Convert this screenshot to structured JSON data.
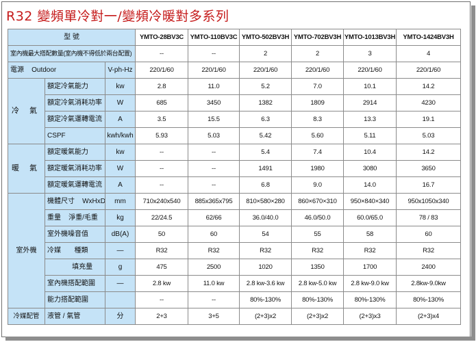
{
  "title": "R32  變頻單冷對一/變頻冷暖對多系列",
  "header": {
    "label": "型         號",
    "models": [
      "YMTO-28BV3C",
      "YMTO-110BV3C",
      "YMTO-502BV3H",
      "YMTO-702BV3H",
      "YMTO-1013BV3H",
      "YMTO-1424BV3H"
    ]
  },
  "row_max_units": {
    "label": "室內機最大搭配數量(室內機不得低於兩台配置)",
    "values": [
      "--",
      "--",
      "2",
      "2",
      "3",
      "4"
    ]
  },
  "row_power": {
    "label": "電源    Outdoor",
    "unit": "V-ph-Hz",
    "values": [
      "220/1/60",
      "220/1/60",
      "220/1/60",
      "220/1/60",
      "220/1/60",
      "220/1/60"
    ]
  },
  "cooling": {
    "group": "冷 氣",
    "rows": [
      {
        "label": "額定冷氣能力",
        "unit": "kw",
        "values": [
          "2.8",
          "11.0",
          "5.2",
          "7.0",
          "10.1",
          "14.2"
        ]
      },
      {
        "label": "額定冷氣消耗功率",
        "unit": "W",
        "values": [
          "685",
          "3450",
          "1382",
          "1809",
          "2914",
          "4230"
        ]
      },
      {
        "label": "額定冷氣運轉電流",
        "unit": "A",
        "values": [
          "3.5",
          "15.5",
          "6.3",
          "8.3",
          "13.3",
          "19.1"
        ]
      },
      {
        "label": "CSPF",
        "unit": "kwh/kwh",
        "values": [
          "5.93",
          "5.03",
          "5.42",
          "5.60",
          "5.11",
          "5.03"
        ]
      }
    ]
  },
  "heating": {
    "group": "暖 氣",
    "rows": [
      {
        "label": "額定暖氣能力",
        "unit": "kw",
        "values": [
          "--",
          "--",
          "5.4",
          "7.4",
          "10.4",
          "14.2"
        ]
      },
      {
        "label": "額定暖氣消耗功率",
        "unit": "W",
        "values": [
          "--",
          "--",
          "1491",
          "1980",
          "3080",
          "3650"
        ]
      },
      {
        "label": "額定暖氣運轉電流",
        "unit": "A",
        "values": [
          "--",
          "--",
          "6.8",
          "9.0",
          "14.0",
          "16.7"
        ]
      }
    ]
  },
  "outdoor": {
    "group": "室外機",
    "rows": [
      {
        "label": "機體尺寸    WxHxD",
        "unit": "mm",
        "values": [
          "710x240x540",
          "885x365x795",
          "810×580×280",
          "860×670×310",
          "950×840×340",
          "950x1050x340"
        ]
      },
      {
        "label": "重量    淨重/毛重",
        "unit": "kg",
        "values": [
          "22/24.5",
          "62/66",
          "36.0/40.0",
          "46.0/50.0",
          "60.0/65.0",
          "78 / 83"
        ]
      },
      {
        "label": "室外機噪音值",
        "unit": "dB(A)",
        "values": [
          "50",
          "60",
          "54",
          "55",
          "58",
          "60"
        ]
      },
      {
        "label": "冷媒       種類",
        "unit": "—",
        "values": [
          "R32",
          "R32",
          "R32",
          "R32",
          "R32",
          "R32"
        ]
      },
      {
        "label": "             填充量",
        "unit": "g",
        "values": [
          "475",
          "2500",
          "1020",
          "1350",
          "1700",
          "2400"
        ]
      },
      {
        "label": "室內機搭配範圍",
        "unit": "—",
        "values": [
          "2.8 kw",
          "11.0 kw",
          "2.8 kw-3.6 kw",
          "2.8 kw-5.0 kw",
          "2.8 kw-9.0 kw",
          "2.8kw-9.0kw"
        ]
      },
      {
        "label": "能力搭配範圍",
        "unit": "",
        "values": [
          "--",
          "--",
          "80%-130%",
          "80%-130%",
          "80%-130%",
          "80%-130%"
        ]
      }
    ]
  },
  "piping": {
    "group": "冷媒配管",
    "label": "液管 / 氣管",
    "unit": "分",
    "values": [
      "2+3",
      "3+5",
      "(2+3)x2",
      "(2+3)x2",
      "(2+3)x3",
      "(2+3)x4"
    ]
  }
}
